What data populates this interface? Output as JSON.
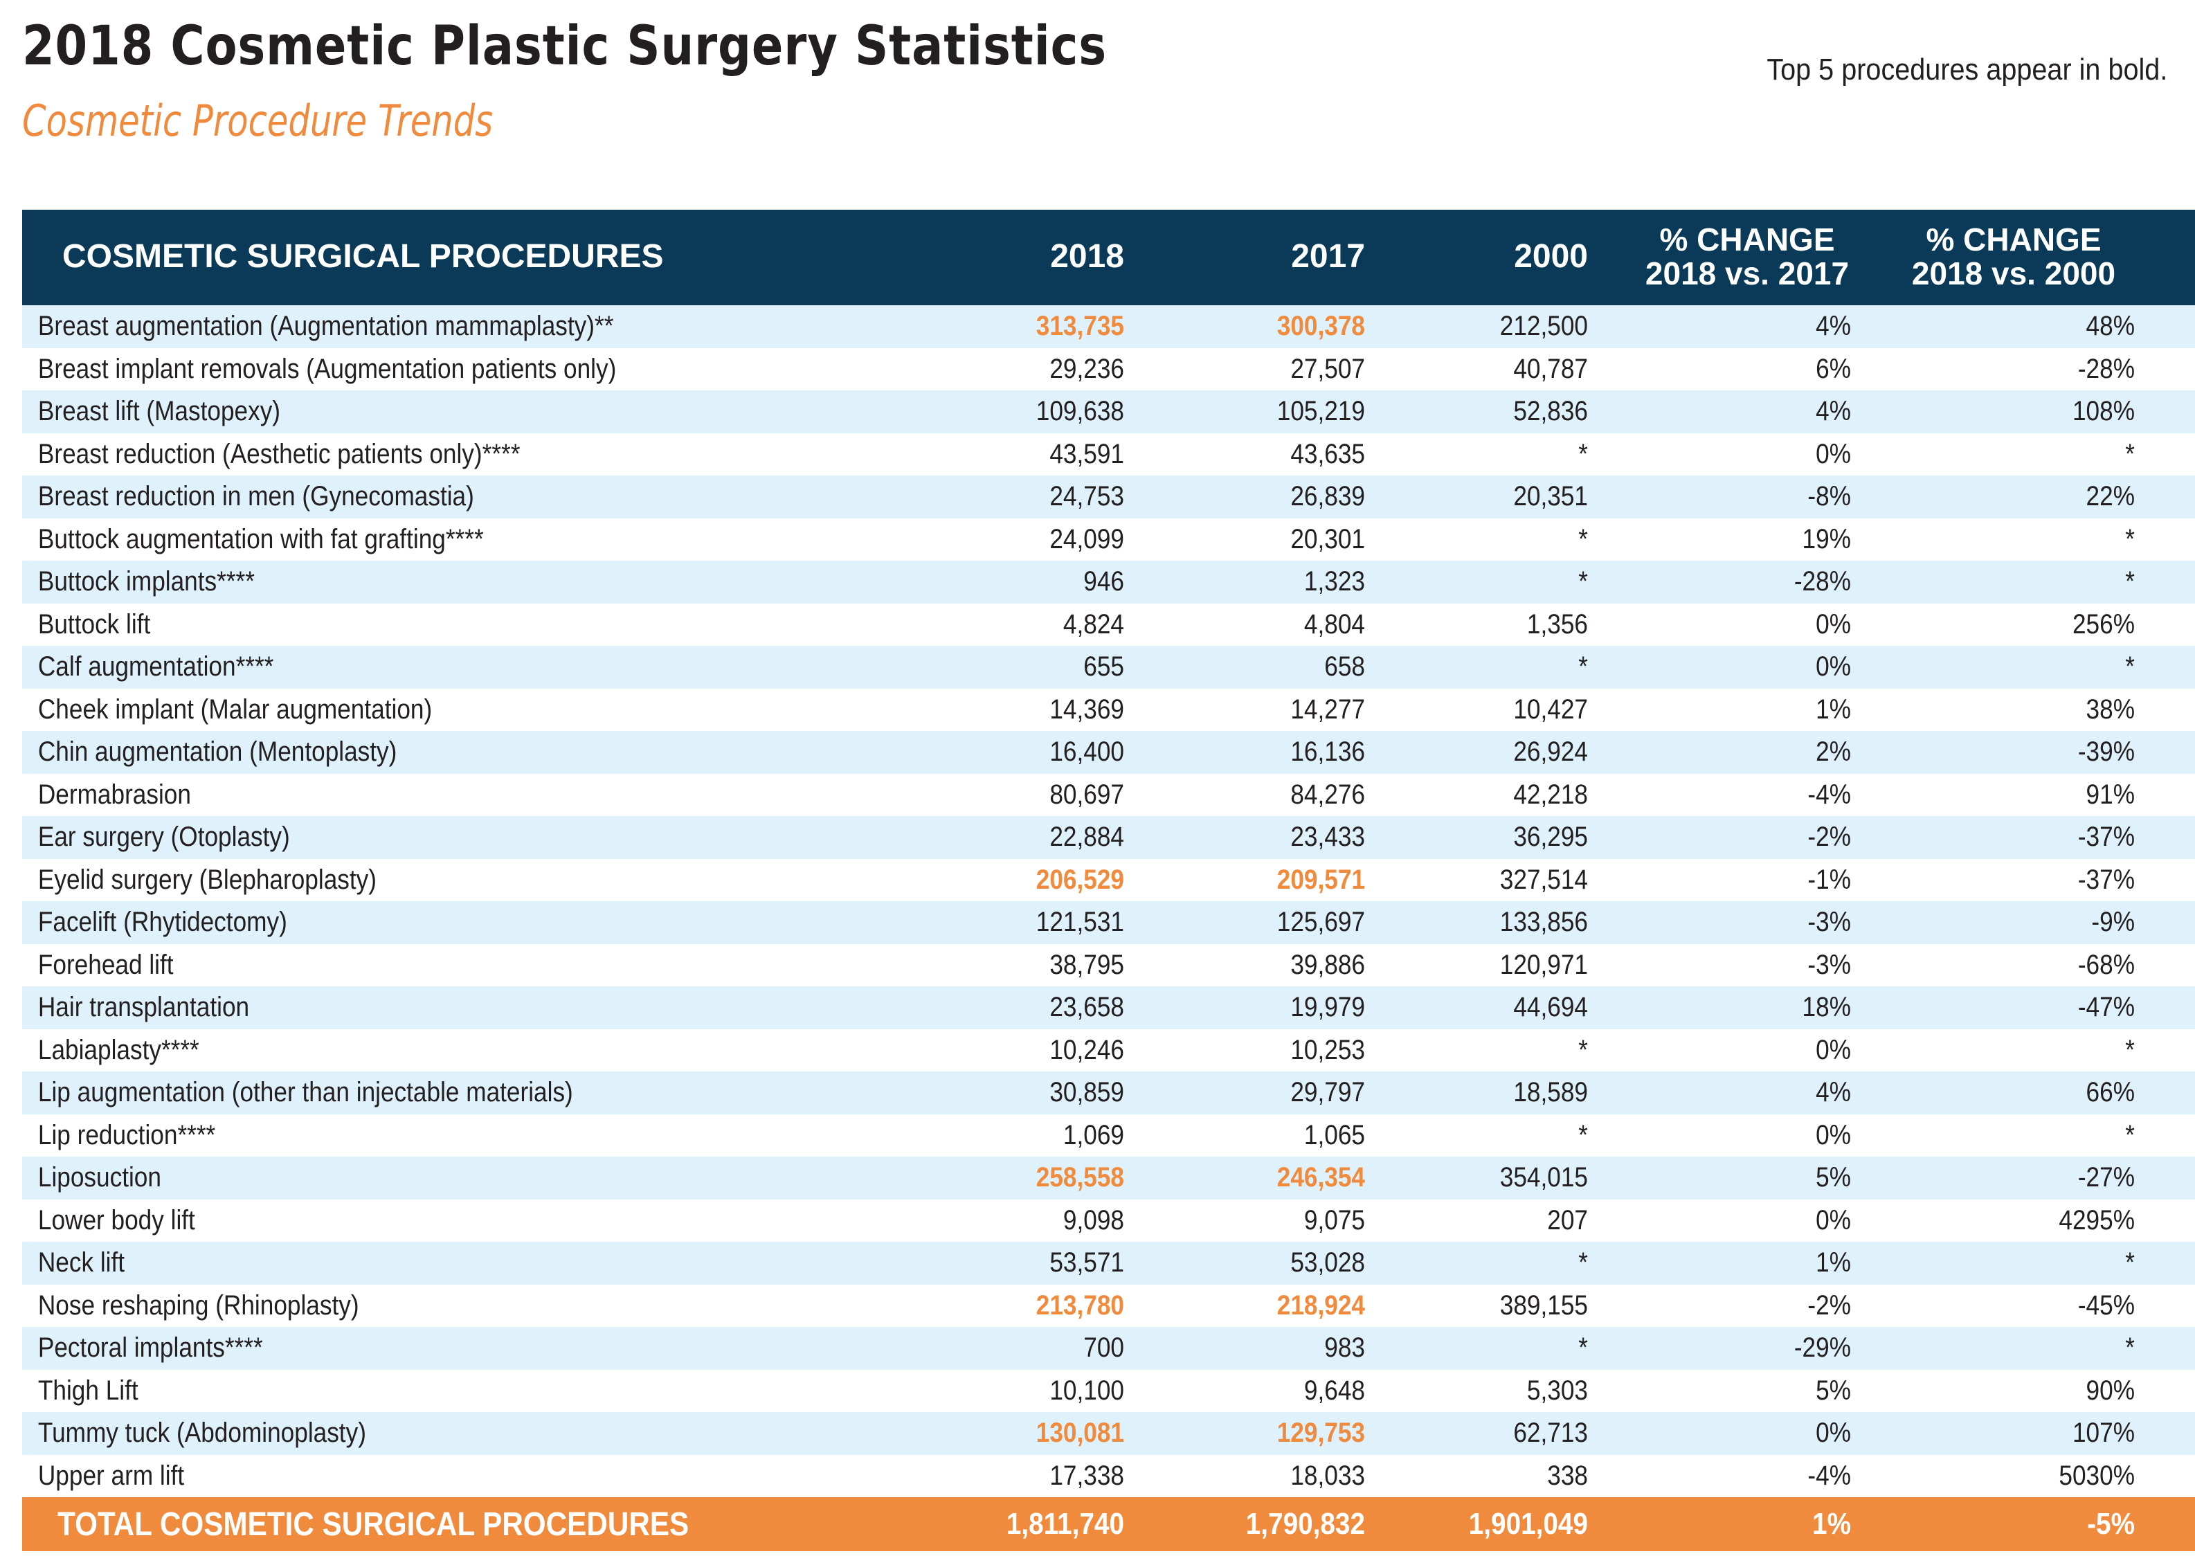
{
  "header": {
    "title": "2018 Cosmetic Plastic Surgery Statistics",
    "subtitle": "Cosmetic Procedure Trends",
    "note": "Top 5 procedures appear in bold."
  },
  "colors": {
    "navy": "#0a3a57",
    "orange": "#f08a3c",
    "light_blue": "#dff1fa"
  },
  "table": {
    "columns": [
      "COSMETIC SURGICAL PROCEDURES",
      "2018",
      "2017",
      "2000",
      "% CHANGE\n2018 vs. 2017",
      "% CHANGE\n2018 vs. 2000"
    ],
    "col_pct1_line1": "% CHANGE",
    "col_pct1_line2": "2018 vs. 2017",
    "col_pct2_line1": "% CHANGE",
    "col_pct2_line2": "2018 vs. 2000",
    "rows": [
      {
        "name": "Breast augmentation (Augmentation mammaplasty)**",
        "y2018": "313,735",
        "y2017": "300,378",
        "y2000": "212,500",
        "pct1": "4%",
        "pct2": "48%",
        "top5": true
      },
      {
        "name": "Breast implant removals (Augmentation patients only)",
        "y2018": "29,236",
        "y2017": "27,507",
        "y2000": "40,787",
        "pct1": "6%",
        "pct2": "-28%",
        "top5": false
      },
      {
        "name": "Breast lift (Mastopexy)",
        "y2018": "109,638",
        "y2017": "105,219",
        "y2000": "52,836",
        "pct1": "4%",
        "pct2": "108%",
        "top5": false
      },
      {
        "name": "Breast reduction (Aesthetic patients only)****",
        "y2018": "43,591",
        "y2017": "43,635",
        "y2000": "*",
        "pct1": "0%",
        "pct2": "*",
        "top5": false
      },
      {
        "name": "Breast reduction in men (Gynecomastia)",
        "y2018": "24,753",
        "y2017": "26,839",
        "y2000": "20,351",
        "pct1": "-8%",
        "pct2": "22%",
        "top5": false
      },
      {
        "name": "Buttock augmentation with fat grafting****",
        "y2018": "24,099",
        "y2017": "20,301",
        "y2000": "*",
        "pct1": "19%",
        "pct2": "*",
        "top5": false
      },
      {
        "name": "Buttock implants****",
        "y2018": "946",
        "y2017": "1,323",
        "y2000": "*",
        "pct1": "-28%",
        "pct2": "*",
        "top5": false
      },
      {
        "name": "Buttock lift",
        "y2018": "4,824",
        "y2017": "4,804",
        "y2000": "1,356",
        "pct1": "0%",
        "pct2": "256%",
        "top5": false
      },
      {
        "name": "Calf augmentation****",
        "y2018": "655",
        "y2017": "658",
        "y2000": "*",
        "pct1": "0%",
        "pct2": "*",
        "top5": false
      },
      {
        "name": "Cheek implant (Malar augmentation)",
        "y2018": "14,369",
        "y2017": "14,277",
        "y2000": "10,427",
        "pct1": "1%",
        "pct2": "38%",
        "top5": false
      },
      {
        "name": "Chin augmentation (Mentoplasty)",
        "y2018": "16,400",
        "y2017": "16,136",
        "y2000": "26,924",
        "pct1": "2%",
        "pct2": "-39%",
        "top5": false
      },
      {
        "name": "Dermabrasion",
        "y2018": "80,697",
        "y2017": "84,276",
        "y2000": "42,218",
        "pct1": "-4%",
        "pct2": "91%",
        "top5": false
      },
      {
        "name": "Ear surgery (Otoplasty)",
        "y2018": "22,884",
        "y2017": "23,433",
        "y2000": "36,295",
        "pct1": "-2%",
        "pct2": "-37%",
        "top5": false
      },
      {
        "name": "Eyelid surgery (Blepharoplasty)",
        "y2018": "206,529",
        "y2017": "209,571",
        "y2000": "327,514",
        "pct1": "-1%",
        "pct2": "-37%",
        "top5": true
      },
      {
        "name": "Facelift (Rhytidectomy)",
        "y2018": "121,531",
        "y2017": "125,697",
        "y2000": "133,856",
        "pct1": "-3%",
        "pct2": "-9%",
        "top5": false
      },
      {
        "name": "Forehead lift",
        "y2018": "38,795",
        "y2017": "39,886",
        "y2000": "120,971",
        "pct1": "-3%",
        "pct2": "-68%",
        "top5": false
      },
      {
        "name": "Hair transplantation",
        "y2018": "23,658",
        "y2017": "19,979",
        "y2000": "44,694",
        "pct1": "18%",
        "pct2": "-47%",
        "top5": false
      },
      {
        "name": "Labiaplasty****",
        "y2018": "10,246",
        "y2017": "10,253",
        "y2000": "*",
        "pct1": "0%",
        "pct2": "*",
        "top5": false
      },
      {
        "name": "Lip augmentation (other than injectable materials)",
        "y2018": "30,859",
        "y2017": "29,797",
        "y2000": "18,589",
        "pct1": "4%",
        "pct2": "66%",
        "top5": false
      },
      {
        "name": "Lip reduction****",
        "y2018": "1,069",
        "y2017": "1,065",
        "y2000": "*",
        "pct1": "0%",
        "pct2": "*",
        "top5": false
      },
      {
        "name": "Liposuction",
        "y2018": "258,558",
        "y2017": "246,354",
        "y2000": "354,015",
        "pct1": "5%",
        "pct2": "-27%",
        "top5": true
      },
      {
        "name": "Lower body lift",
        "y2018": "9,098",
        "y2017": "9,075",
        "y2000": "207",
        "pct1": "0%",
        "pct2": "4295%",
        "top5": false
      },
      {
        "name": "Neck lift",
        "y2018": "53,571",
        "y2017": "53,028",
        "y2000": "*",
        "pct1": "1%",
        "pct2": "*",
        "top5": false
      },
      {
        "name": "Nose reshaping (Rhinoplasty)",
        "y2018": "213,780",
        "y2017": "218,924",
        "y2000": "389,155",
        "pct1": "-2%",
        "pct2": "-45%",
        "top5": true
      },
      {
        "name": "Pectoral implants****",
        "y2018": "700",
        "y2017": "983",
        "y2000": "*",
        "pct1": "-29%",
        "pct2": "*",
        "top5": false
      },
      {
        "name": "Thigh Lift",
        "y2018": "10,100",
        "y2017": "9,648",
        "y2000": "5,303",
        "pct1": "5%",
        "pct2": "90%",
        "top5": false
      },
      {
        "name": "Tummy tuck (Abdominoplasty)",
        "y2018": "130,081",
        "y2017": "129,753",
        "y2000": "62,713",
        "pct1": "0%",
        "pct2": "107%",
        "top5": true
      },
      {
        "name": "Upper arm lift",
        "y2018": "17,338",
        "y2017": "18,033",
        "y2000": "338",
        "pct1": "-4%",
        "pct2": "5030%",
        "top5": false
      }
    ],
    "total": {
      "name": "TOTAL COSMETIC SURGICAL PROCEDURES",
      "y2018": "1,811,740",
      "y2017": "1,790,832",
      "y2000": "1,901,049",
      "pct1": "1%",
      "pct2": "-5%"
    }
  }
}
